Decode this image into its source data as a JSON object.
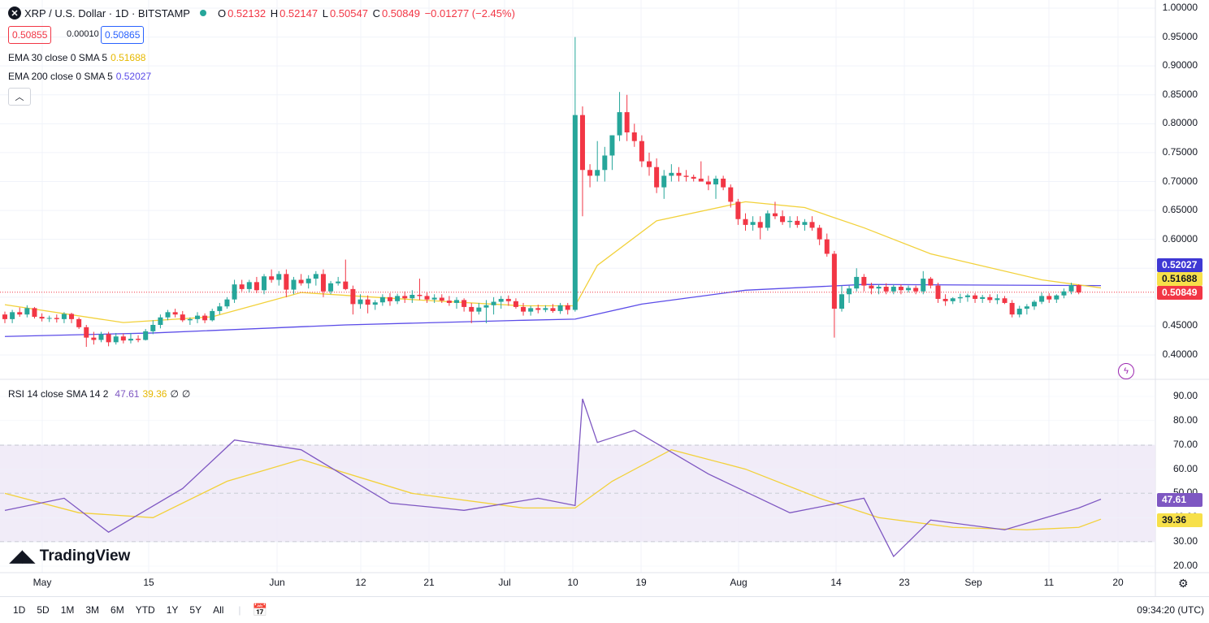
{
  "header": {
    "symbol_title": "XRP / U.S. Dollar · 1D · BITSTAMP",
    "symbol_icon": "x-logo-icon",
    "ohlc": {
      "o_label": "O",
      "o": "0.52132",
      "h_label": "H",
      "h": "0.52147",
      "l_label": "L",
      "l": "0.50547",
      "c_label": "C",
      "c": "0.50849",
      "change": "−0.01277 (−2.45%)"
    },
    "bid": "0.50855",
    "spread": "0.00010",
    "ask": "0.50865"
  },
  "indicators": {
    "ema30": {
      "label": "EMA 30 close 0 SMA 5",
      "value": "0.51688",
      "color": "#f2d13a"
    },
    "ema200": {
      "label": "EMA 200 close 0 SMA 5",
      "value": "0.52027",
      "color": "#6a5cf0"
    },
    "rsi": {
      "label": "RSI 14 close SMA 14 2",
      "value": "47.61",
      "sma": "39.36",
      "extra1": "∅",
      "extra2": "∅"
    }
  },
  "price_axis": {
    "ticks": [
      "1.00000",
      "0.95000",
      "0.90000",
      "0.85000",
      "0.80000",
      "0.75000",
      "0.70000",
      "0.65000",
      "0.60000",
      "0.55000",
      "0.50000",
      "0.45000",
      "0.40000"
    ]
  },
  "price_badges": {
    "ema200": "0.52027",
    "ema30": "0.51688",
    "last": "0.50849"
  },
  "rsi_axis": {
    "ticks": [
      "90.00",
      "80.00",
      "70.00",
      "60.00",
      "50.00",
      "40.00",
      "30.00",
      "20.00"
    ]
  },
  "rsi_badges": {
    "rsi": "47.61",
    "sma": "39.36"
  },
  "time_axis": {
    "labels": [
      "May",
      "15",
      "Jun",
      "12",
      "21",
      "Jul",
      "10",
      "19",
      "Aug",
      "14",
      "23",
      "Sep",
      "11",
      "20"
    ]
  },
  "branding": {
    "logo_text": "TradingView"
  },
  "bottom_bar": {
    "ranges": [
      "1D",
      "5D",
      "1M",
      "3M",
      "6M",
      "YTD",
      "1Y",
      "5Y",
      "All"
    ],
    "clock": "09:34:20 (UTC)"
  },
  "colors": {
    "up": "#26a69a",
    "down": "#f23645",
    "rsi_line": "#7e57c2",
    "rsi_band": "#ede7f6"
  },
  "chart_data": [
    {
      "type": "candlestick",
      "title": "XRP / U.S. Dollar · 1D · BITSTAMP",
      "ylim": [
        0.37,
        1.0
      ],
      "y_ticks": [
        1.0,
        0.95,
        0.9,
        0.85,
        0.8,
        0.75,
        0.7,
        0.65,
        0.6,
        0.55,
        0.5,
        0.45,
        0.4
      ],
      "last_price": 0.50849,
      "candles_ohlc": [
        [
          0.47,
          0.475,
          0.455,
          0.462
        ],
        [
          0.462,
          0.478,
          0.455,
          0.474
        ],
        [
          0.474,
          0.482,
          0.466,
          0.47
        ],
        [
          0.47,
          0.486,
          0.465,
          0.481
        ],
        [
          0.481,
          0.483,
          0.463,
          0.466
        ],
        [
          0.466,
          0.472,
          0.458,
          0.463
        ],
        [
          0.463,
          0.468,
          0.457,
          0.464
        ],
        [
          0.464,
          0.47,
          0.456,
          0.462
        ],
        [
          0.462,
          0.474,
          0.455,
          0.471
        ],
        [
          0.471,
          0.473,
          0.455,
          0.462
        ],
        [
          0.462,
          0.465,
          0.445,
          0.448
        ],
        [
          0.448,
          0.452,
          0.414,
          0.43
        ],
        [
          0.43,
          0.44,
          0.418,
          0.426
        ],
        [
          0.426,
          0.44,
          0.422,
          0.436
        ],
        [
          0.436,
          0.44,
          0.415,
          0.422
        ],
        [
          0.422,
          0.438,
          0.418,
          0.432
        ],
        [
          0.432,
          0.437,
          0.42,
          0.425
        ],
        [
          0.425,
          0.438,
          0.42,
          0.428
        ],
        [
          0.428,
          0.434,
          0.422,
          0.426
        ],
        [
          0.426,
          0.445,
          0.425,
          0.441
        ],
        [
          0.441,
          0.46,
          0.436,
          0.452
        ],
        [
          0.452,
          0.47,
          0.446,
          0.465
        ],
        [
          0.465,
          0.478,
          0.46,
          0.474
        ],
        [
          0.474,
          0.48,
          0.465,
          0.47
        ],
        [
          0.47,
          0.476,
          0.457,
          0.46
        ],
        [
          0.46,
          0.465,
          0.452,
          0.462
        ],
        [
          0.462,
          0.474,
          0.455,
          0.468
        ],
        [
          0.468,
          0.472,
          0.455,
          0.46
        ],
        [
          0.46,
          0.48,
          0.458,
          0.476
        ],
        [
          0.476,
          0.49,
          0.47,
          0.484
        ],
        [
          0.484,
          0.5,
          0.48,
          0.496
        ],
        [
          0.496,
          0.53,
          0.49,
          0.522
        ],
        [
          0.522,
          0.53,
          0.51,
          0.514
        ],
        [
          0.514,
          0.53,
          0.508,
          0.526
        ],
        [
          0.526,
          0.535,
          0.507,
          0.512
        ],
        [
          0.512,
          0.54,
          0.505,
          0.536
        ],
        [
          0.536,
          0.548,
          0.525,
          0.53
        ],
        [
          0.53,
          0.545,
          0.52,
          0.54
        ],
        [
          0.54,
          0.548,
          0.5,
          0.513
        ],
        [
          0.513,
          0.535,
          0.505,
          0.53
        ],
        [
          0.53,
          0.54,
          0.52,
          0.524
        ],
        [
          0.524,
          0.538,
          0.515,
          0.532
        ],
        [
          0.532,
          0.545,
          0.52,
          0.54
        ],
        [
          0.54,
          0.548,
          0.5,
          0.51
        ],
        [
          0.51,
          0.528,
          0.505,
          0.524
        ],
        [
          0.524,
          0.535,
          0.52,
          0.527
        ],
        [
          0.527,
          0.565,
          0.512,
          0.514
        ],
        [
          0.514,
          0.52,
          0.47,
          0.488
        ],
        [
          0.488,
          0.505,
          0.48,
          0.496
        ],
        [
          0.496,
          0.503,
          0.472,
          0.487
        ],
        [
          0.487,
          0.495,
          0.478,
          0.491
        ],
        [
          0.491,
          0.505,
          0.485,
          0.5
        ],
        [
          0.5,
          0.507,
          0.485,
          0.493
        ],
        [
          0.493,
          0.506,
          0.488,
          0.502
        ],
        [
          0.502,
          0.51,
          0.49,
          0.498
        ],
        [
          0.498,
          0.512,
          0.49,
          0.504
        ],
        [
          0.504,
          0.532,
          0.495,
          0.502
        ],
        [
          0.502,
          0.508,
          0.49,
          0.496
        ],
        [
          0.496,
          0.505,
          0.49,
          0.499
        ],
        [
          0.499,
          0.505,
          0.49,
          0.494
        ],
        [
          0.494,
          0.502,
          0.485,
          0.49
        ],
        [
          0.49,
          0.5,
          0.48,
          0.495
        ],
        [
          0.495,
          0.498,
          0.475,
          0.483
        ],
        [
          0.483,
          0.49,
          0.455,
          0.475
        ],
        [
          0.475,
          0.49,
          0.47,
          0.482
        ],
        [
          0.482,
          0.495,
          0.455,
          0.486
        ],
        [
          0.486,
          0.5,
          0.47,
          0.492
        ],
        [
          0.492,
          0.502,
          0.48,
          0.497
        ],
        [
          0.497,
          0.503,
          0.485,
          0.493
        ],
        [
          0.493,
          0.498,
          0.48,
          0.483
        ],
        [
          0.483,
          0.49,
          0.468,
          0.475
        ],
        [
          0.475,
          0.485,
          0.468,
          0.481
        ],
        [
          0.481,
          0.487,
          0.472,
          0.478
        ],
        [
          0.478,
          0.486,
          0.474,
          0.481
        ],
        [
          0.481,
          0.488,
          0.473,
          0.476
        ],
        [
          0.476,
          0.49,
          0.471,
          0.486
        ],
        [
          0.486,
          0.49,
          0.47,
          0.478
        ],
        [
          0.478,
          0.95,
          0.475,
          0.815
        ],
        [
          0.815,
          0.83,
          0.64,
          0.72
        ],
        [
          0.72,
          0.73,
          0.69,
          0.71
        ],
        [
          0.71,
          0.77,
          0.7,
          0.72
        ],
        [
          0.72,
          0.76,
          0.7,
          0.745
        ],
        [
          0.745,
          0.78,
          0.72,
          0.78
        ],
        [
          0.78,
          0.855,
          0.77,
          0.82
        ],
        [
          0.82,
          0.85,
          0.77,
          0.785
        ],
        [
          0.785,
          0.8,
          0.76,
          0.77
        ],
        [
          0.77,
          0.78,
          0.725,
          0.735
        ],
        [
          0.735,
          0.75,
          0.71,
          0.725
        ],
        [
          0.725,
          0.74,
          0.68,
          0.69
        ],
        [
          0.69,
          0.72,
          0.67,
          0.71
        ],
        [
          0.71,
          0.73,
          0.7,
          0.715
        ],
        [
          0.715,
          0.725,
          0.7,
          0.71
        ],
        [
          0.71,
          0.72,
          0.7,
          0.708
        ],
        [
          0.708,
          0.712,
          0.7,
          0.705
        ],
        [
          0.705,
          0.735,
          0.7,
          0.7
        ],
        [
          0.7,
          0.71,
          0.685,
          0.695
        ],
        [
          0.695,
          0.71,
          0.67,
          0.705
        ],
        [
          0.705,
          0.71,
          0.685,
          0.69
        ],
        [
          0.69,
          0.695,
          0.655,
          0.665
        ],
        [
          0.665,
          0.67,
          0.625,
          0.635
        ],
        [
          0.635,
          0.645,
          0.615,
          0.625
        ],
        [
          0.625,
          0.64,
          0.615,
          0.63
        ],
        [
          0.63,
          0.64,
          0.6,
          0.62
        ],
        [
          0.62,
          0.65,
          0.615,
          0.645
        ],
        [
          0.645,
          0.665,
          0.635,
          0.64
        ],
        [
          0.64,
          0.65,
          0.625,
          0.63
        ],
        [
          0.63,
          0.64,
          0.62,
          0.632
        ],
        [
          0.632,
          0.64,
          0.62,
          0.625
        ],
        [
          0.625,
          0.635,
          0.615,
          0.63
        ],
        [
          0.63,
          0.64,
          0.615,
          0.62
        ],
        [
          0.62,
          0.625,
          0.59,
          0.6
        ],
        [
          0.6,
          0.61,
          0.57,
          0.575
        ],
        [
          0.575,
          0.58,
          0.43,
          0.48
        ],
        [
          0.48,
          0.52,
          0.475,
          0.505
        ],
        [
          0.505,
          0.52,
          0.49,
          0.515
        ],
        [
          0.515,
          0.55,
          0.51,
          0.535
        ],
        [
          0.535,
          0.54,
          0.51,
          0.52
        ],
        [
          0.52,
          0.525,
          0.505,
          0.515
        ],
        [
          0.515,
          0.522,
          0.505,
          0.518
        ],
        [
          0.518,
          0.524,
          0.505,
          0.51
        ],
        [
          0.51,
          0.522,
          0.505,
          0.518
        ],
        [
          0.518,
          0.522,
          0.505,
          0.512
        ],
        [
          0.512,
          0.52,
          0.508,
          0.516
        ],
        [
          0.516,
          0.52,
          0.505,
          0.51
        ],
        [
          0.51,
          0.545,
          0.505,
          0.532
        ],
        [
          0.532,
          0.535,
          0.515,
          0.52
        ],
        [
          0.52,
          0.525,
          0.49,
          0.497
        ],
        [
          0.497,
          0.505,
          0.485,
          0.493
        ],
        [
          0.493,
          0.5,
          0.488,
          0.498
        ],
        [
          0.498,
          0.506,
          0.49,
          0.5
        ],
        [
          0.5,
          0.506,
          0.492,
          0.503
        ],
        [
          0.503,
          0.507,
          0.49,
          0.497
        ],
        [
          0.497,
          0.504,
          0.49,
          0.5
        ],
        [
          0.5,
          0.505,
          0.49,
          0.495
        ],
        [
          0.495,
          0.505,
          0.488,
          0.498
        ],
        [
          0.498,
          0.502,
          0.488,
          0.49
        ],
        [
          0.49,
          0.495,
          0.465,
          0.47
        ],
        [
          0.47,
          0.485,
          0.465,
          0.48
        ],
        [
          0.48,
          0.488,
          0.47,
          0.484
        ],
        [
          0.484,
          0.495,
          0.478,
          0.492
        ],
        [
          0.492,
          0.508,
          0.488,
          0.502
        ],
        [
          0.502,
          0.507,
          0.49,
          0.496
        ],
        [
          0.496,
          0.505,
          0.49,
          0.503
        ],
        [
          0.503,
          0.515,
          0.498,
          0.51
        ],
        [
          0.51,
          0.525,
          0.505,
          0.521
        ],
        [
          0.521,
          0.522,
          0.505,
          0.508
        ]
      ],
      "series_ema30": [
        [
          0,
          0.487
        ],
        [
          16,
          0.456
        ],
        [
          28,
          0.466
        ],
        [
          40,
          0.508
        ],
        [
          56,
          0.495
        ],
        [
          70,
          0.485
        ],
        [
          77,
          0.485
        ],
        [
          80,
          0.555
        ],
        [
          88,
          0.632
        ],
        [
          100,
          0.665
        ],
        [
          108,
          0.655
        ],
        [
          116,
          0.62
        ],
        [
          125,
          0.575
        ],
        [
          140,
          0.53
        ],
        [
          148,
          0.516
        ]
      ],
      "series_ema200": [
        [
          0,
          0.432
        ],
        [
          20,
          0.438
        ],
        [
          46,
          0.452
        ],
        [
          70,
          0.46
        ],
        [
          77,
          0.462
        ],
        [
          86,
          0.488
        ],
        [
          100,
          0.512
        ],
        [
          116,
          0.522
        ],
        [
          130,
          0.521
        ],
        [
          148,
          0.52
        ]
      ]
    },
    {
      "type": "line",
      "title": "RSI 14 close SMA 14 2",
      "ylim": [
        16,
        93
      ],
      "y_ticks": [
        90,
        80,
        70,
        60,
        50,
        40,
        30,
        20
      ],
      "bands": [
        30,
        50,
        70
      ],
      "series": [
        {
          "name": "RSI",
          "points": [
            [
              0,
              43
            ],
            [
              8,
              48
            ],
            [
              14,
              34
            ],
            [
              24,
              52
            ],
            [
              31,
              72
            ],
            [
              40,
              68
            ],
            [
              52,
              46
            ],
            [
              62,
              43
            ],
            [
              72,
              48
            ],
            [
              77,
              45
            ],
            [
              78,
              89
            ],
            [
              80,
              71
            ],
            [
              85,
              76
            ],
            [
              95,
              58
            ],
            [
              106,
              42
            ],
            [
              116,
              48
            ],
            [
              120,
              24
            ],
            [
              125,
              39
            ],
            [
              135,
              35
            ],
            [
              145,
              44
            ],
            [
              148,
              47.61
            ]
          ]
        },
        {
          "name": "SMA",
          "points": [
            [
              0,
              50
            ],
            [
              10,
              42
            ],
            [
              20,
              40
            ],
            [
              30,
              55
            ],
            [
              40,
              64
            ],
            [
              55,
              50
            ],
            [
              70,
              44
            ],
            [
              77,
              44
            ],
            [
              82,
              55
            ],
            [
              90,
              68
            ],
            [
              100,
              60
            ],
            [
              110,
              48
            ],
            [
              118,
              40
            ],
            [
              128,
              36
            ],
            [
              138,
              35
            ],
            [
              145,
              36
            ],
            [
              148,
              39.36
            ]
          ]
        }
      ]
    }
  ]
}
